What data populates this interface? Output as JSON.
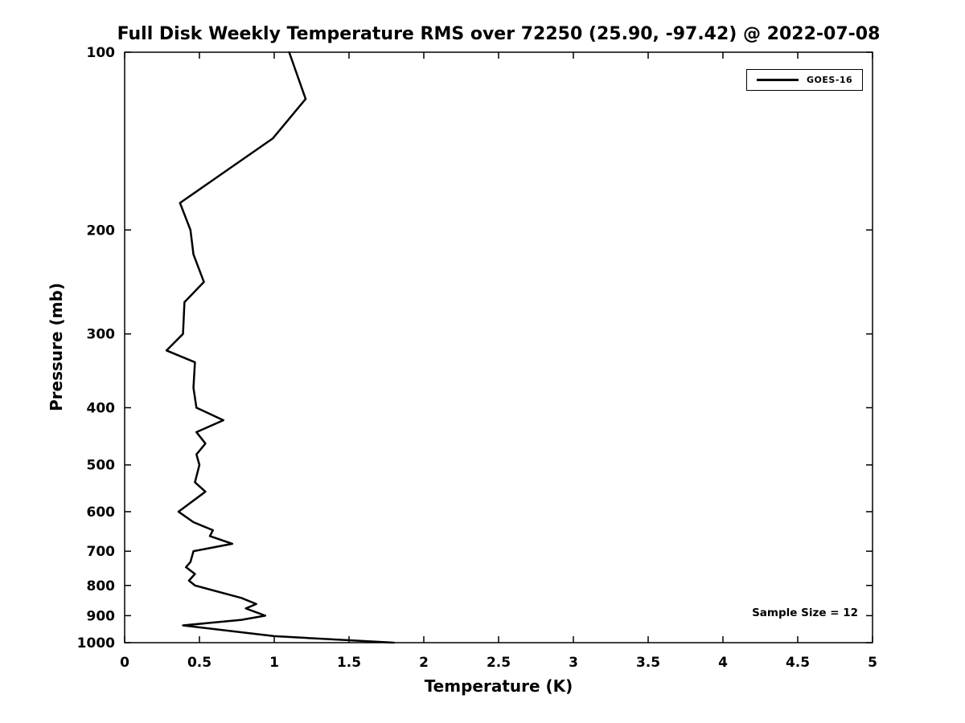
{
  "title": "Full Disk Weekly Temperature RMS over 72250 (25.90, -97.42) @ 2022-07-08",
  "legend": {
    "series_label": "GOES-16"
  },
  "annotation": {
    "sample_size": "Sample Size = 12"
  },
  "colors": {
    "line": "#000000",
    "axis": "#000000",
    "background": "#ffffff"
  },
  "chart_data": {
    "type": "line",
    "title": "Full Disk Weekly Temperature RMS over 72250 (25.90, -97.42) @ 2022-07-08",
    "xlabel": "Temperature (K)",
    "ylabel": "Pressure (mb)",
    "xlim": [
      0,
      5
    ],
    "ylim": [
      100,
      1000
    ],
    "y_scale": "log",
    "y_inverted": true,
    "grid": false,
    "legend_position": "top-right",
    "x_ticks": [
      0,
      0.5,
      1,
      1.5,
      2,
      2.5,
      3,
      3.5,
      4,
      4.5,
      5
    ],
    "x_tick_labels": [
      "0",
      "0.5",
      "1",
      "1.5",
      "2",
      "2.5",
      "3",
      "3.5",
      "4",
      "4.5",
      "5"
    ],
    "y_ticks": [
      100,
      200,
      300,
      400,
      500,
      600,
      700,
      800,
      900,
      1000
    ],
    "y_tick_labels": [
      "100",
      "200",
      "300",
      "400",
      "500",
      "600",
      "700",
      "800",
      "900",
      "1000"
    ],
    "series": [
      {
        "name": "GOES-16",
        "color": "#000000",
        "pressure_mb": [
          100,
          120,
          140,
          180,
          200,
          220,
          245,
          265,
          300,
          320,
          335,
          370,
          400,
          420,
          440,
          460,
          480,
          500,
          535,
          555,
          600,
          625,
          645,
          660,
          680,
          700,
          730,
          745,
          765,
          785,
          800,
          840,
          860,
          875,
          900,
          915,
          935,
          975,
          1000
        ],
        "rms_k": [
          1.1,
          1.21,
          0.99,
          0.37,
          0.44,
          0.46,
          0.53,
          0.4,
          0.39,
          0.28,
          0.47,
          0.46,
          0.48,
          0.66,
          0.48,
          0.54,
          0.48,
          0.5,
          0.47,
          0.54,
          0.36,
          0.46,
          0.59,
          0.57,
          0.72,
          0.46,
          0.44,
          0.41,
          0.47,
          0.43,
          0.47,
          0.78,
          0.88,
          0.81,
          0.94,
          0.78,
          0.39,
          1.0,
          1.8
        ]
      }
    ],
    "annotations": [
      "Sample Size = 12"
    ]
  }
}
